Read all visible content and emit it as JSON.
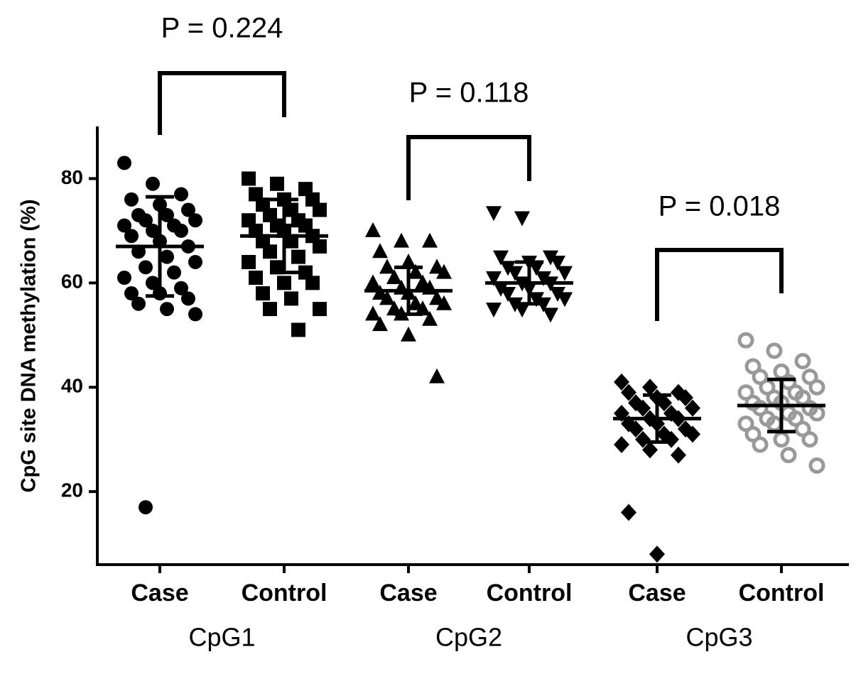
{
  "chart_data": {
    "type": "dot",
    "ylabel": "CpG site DNA methylation (%)",
    "ylim": [
      6,
      90
    ],
    "yticks": [
      20,
      40,
      60,
      80
    ],
    "groups": [
      "CpG1",
      "CpG2",
      "CpG3"
    ],
    "annotations": [
      "P = 0.224",
      "P = 0.118",
      "P = 0.018"
    ],
    "series": [
      {
        "name": "Case",
        "marker": "circle",
        "color": "#000000",
        "mean": 67,
        "sd": 9.5,
        "values": [
          83,
          79,
          77,
          76,
          75,
          74,
          73,
          73,
          72,
          72,
          71,
          71,
          70,
          70,
          69,
          68,
          67,
          66,
          65,
          64,
          63,
          62,
          61,
          60,
          59,
          58,
          58,
          57,
          56,
          55,
          54,
          17
        ]
      },
      {
        "name": "Control",
        "marker": "square",
        "color": "#000000",
        "mean": 69,
        "sd": 7,
        "values": [
          80,
          79,
          78,
          77,
          76,
          76,
          75,
          74,
          74,
          73,
          72,
          72,
          71,
          71,
          70,
          70,
          69,
          68,
          68,
          67,
          66,
          65,
          64,
          63,
          62,
          61,
          60,
          60,
          58,
          57,
          55,
          55,
          51
        ]
      },
      {
        "name": "Case",
        "marker": "triangle-up",
        "color": "#000000",
        "mean": 58.5,
        "sd": 4.5,
        "values": [
          70,
          68,
          68,
          66,
          64,
          63,
          63,
          62,
          62,
          61,
          60,
          60,
          59,
          59,
          58,
          58,
          57,
          57,
          56,
          56,
          55,
          55,
          54,
          54,
          53,
          52,
          50,
          42
        ]
      },
      {
        "name": "Control",
        "marker": "triangle-down",
        "color": "#000000",
        "mean": 60,
        "sd": 4,
        "values": [
          73.5,
          72.5,
          65,
          65,
          64,
          64,
          63,
          63,
          62,
          62,
          61,
          61,
          60,
          60,
          59,
          59,
          58,
          58,
          57,
          57,
          56,
          56,
          55,
          55,
          54
        ]
      },
      {
        "name": "Case",
        "marker": "diamond",
        "color": "#000000",
        "mean": 34,
        "sd": 4.5,
        "values": [
          41,
          40,
          39,
          39,
          38,
          38,
          37,
          37,
          36,
          36,
          35,
          35,
          34,
          34,
          33,
          33,
          32,
          32,
          31,
          31,
          30,
          30,
          29,
          28,
          27,
          16,
          8
        ]
      },
      {
        "name": "Control",
        "marker": "open-circle",
        "color": "#999999",
        "mean": 36.5,
        "sd": 5,
        "values": [
          49,
          47,
          45,
          44,
          43,
          42,
          42,
          41,
          40,
          40,
          39,
          39,
          38,
          38,
          37,
          37,
          36,
          36,
          35,
          35,
          34,
          34,
          33,
          33,
          32,
          31,
          30,
          30,
          29,
          27,
          25
        ]
      }
    ]
  }
}
